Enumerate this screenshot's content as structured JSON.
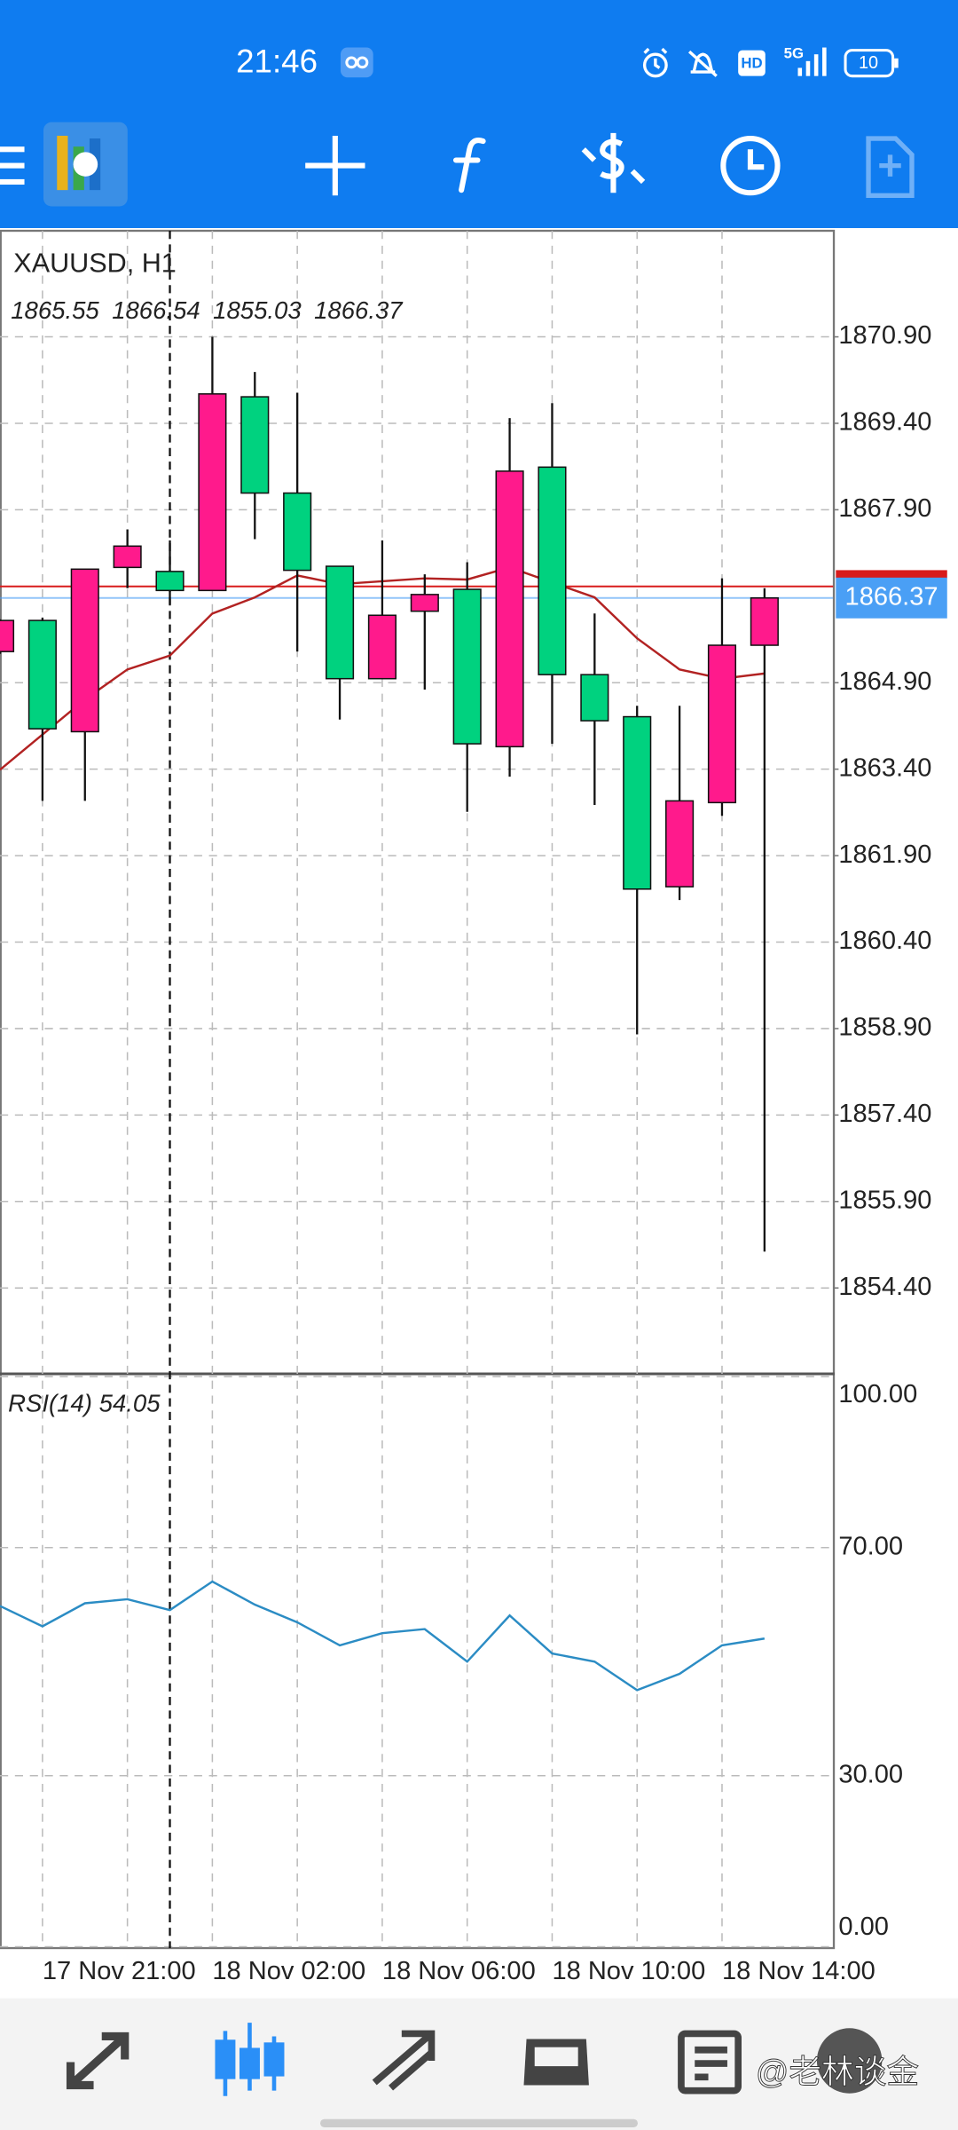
{
  "status_bar": {
    "time": "21:46",
    "hd": "HD",
    "network": "5G",
    "battery": "10"
  },
  "watermark": "@老林谈金",
  "chart_data": [
    {
      "type": "candlestick",
      "title": "XAUUSD, H1",
      "categories": [
        null,
        "17 Nov 21:00",
        null,
        null,
        null,
        "18 Nov 02:00",
        null,
        null,
        null,
        "18 Nov 06:00",
        null,
        null,
        null,
        "18 Nov 10:00",
        null,
        null,
        null,
        "18 Nov 14:00",
        null
      ],
      "open": [
        1865.44,
        1865.98,
        1864.05,
        1866.9,
        1866.83,
        1866.5,
        1869.86,
        1868.19,
        1866.92,
        1864.97,
        1866.14,
        1866.52,
        1863.79,
        1868.64,
        1865.04,
        1864.31,
        1861.36,
        1862.82,
        1865.55
      ],
      "high": [
        1866.0,
        1866.03,
        1866.87,
        1867.56,
        1867.37,
        1870.9,
        1870.29,
        1869.93,
        1866.92,
        1867.37,
        1866.78,
        1866.99,
        1869.49,
        1869.75,
        1866.1,
        1864.5,
        1864.5,
        1866.71,
        1866.54
      ],
      "low": [
        1865.4,
        1862.85,
        1862.85,
        1866.54,
        1866.26,
        1866.5,
        1867.39,
        1865.44,
        1864.26,
        1864.97,
        1864.78,
        1862.66,
        1863.27,
        1863.84,
        1862.78,
        1858.8,
        1861.13,
        1862.59,
        1855.03
      ],
      "close": [
        1865.98,
        1864.1,
        1866.87,
        1867.27,
        1866.5,
        1869.91,
        1868.19,
        1866.85,
        1864.97,
        1866.07,
        1866.43,
        1863.84,
        1868.57,
        1865.04,
        1864.24,
        1861.32,
        1862.85,
        1865.55,
        1866.37
      ],
      "up_color": "#ff1a8c",
      "down_color": "#00d27f",
      "moving_average": {
        "color": "#b22222",
        "values": [
          1863.39,
          1864.0,
          1864.61,
          1865.13,
          1865.37,
          1866.1,
          1866.38,
          1866.76,
          1866.61,
          1866.66,
          1866.71,
          1866.69,
          1866.9,
          1866.64,
          1866.38,
          1865.67,
          1865.13,
          1864.97,
          1865.06
        ]
      },
      "ask": 1866.57,
      "ask_color": "#d81b1b",
      "bid_color": "#4a9ff5",
      "ylim": [
        1852.91,
        1872.74
      ],
      "yticks": [
        {
          "value": 1870.9,
          "label": "1870.90"
        },
        {
          "value": 1869.4,
          "label": "1869.40"
        },
        {
          "value": 1867.9,
          "label": "1867.90"
        },
        {
          "value": 1864.9,
          "label": "1864.90"
        },
        {
          "value": 1863.4,
          "label": "1863.40"
        },
        {
          "value": 1861.9,
          "label": "1861.90"
        },
        {
          "value": 1860.4,
          "label": "1860.40"
        },
        {
          "value": 1858.9,
          "label": "1858.90"
        },
        {
          "value": 1857.4,
          "label": "1857.40"
        },
        {
          "value": 1855.9,
          "label": "1855.90"
        },
        {
          "value": 1854.4,
          "label": "1854.40"
        }
      ],
      "grid": true
    },
    {
      "type": "line",
      "title": "RSI(14)",
      "series": [
        {
          "color": "#2b8cc4",
          "values": [
            59.76,
            56.19,
            60.24,
            60.95,
            59.05,
            64.05,
            60.0,
            56.9,
            52.86,
            55.0,
            55.71,
            50.0,
            58.1,
            51.43,
            50.0,
            45.0,
            47.86,
            52.86,
            54.05
          ]
        }
      ],
      "ylim": [
        0,
        100
      ],
      "yticks": [
        {
          "value": 100,
          "label": "100.00"
        },
        {
          "value": 70,
          "label": "70.00"
        },
        {
          "value": 30,
          "label": "30.00"
        },
        {
          "value": 0,
          "label": "0.00"
        }
      ],
      "grid": true
    }
  ]
}
